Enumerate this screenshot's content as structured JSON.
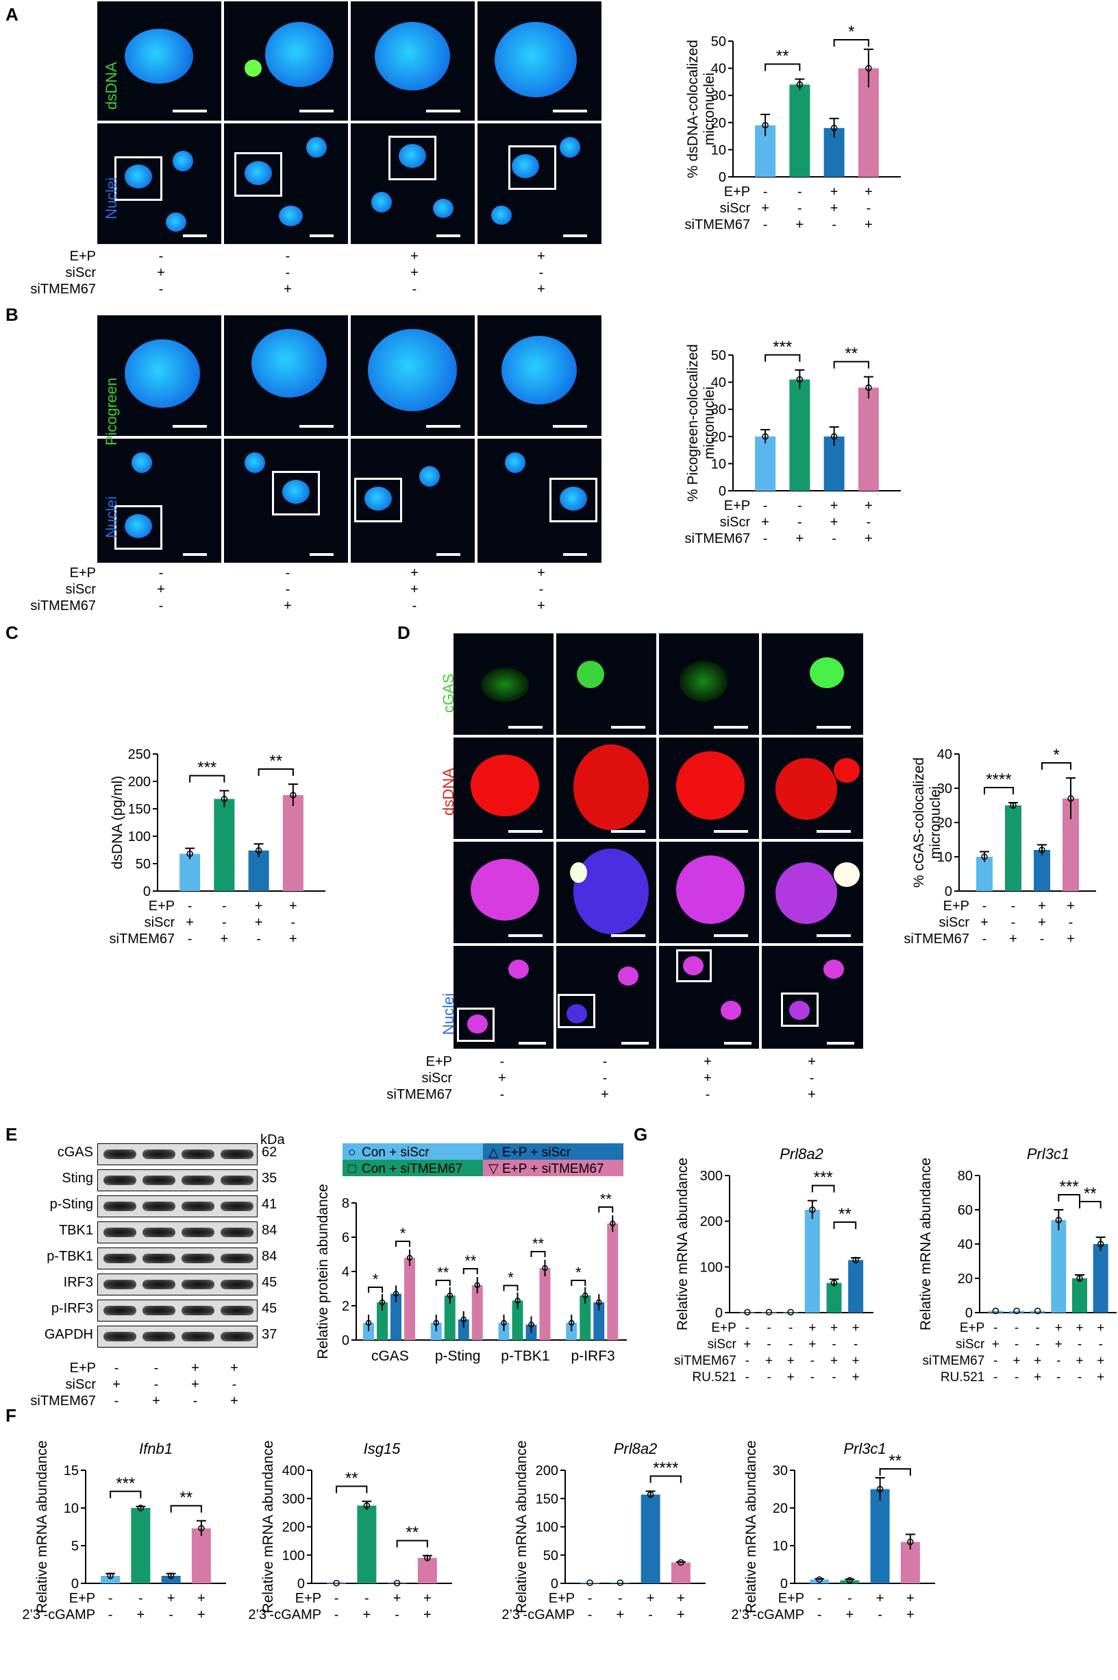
{
  "panels": {
    "A": {
      "letter": "A",
      "stain_top": "dsDNA",
      "stain_bottom": "Nuclei"
    },
    "B": {
      "letter": "B",
      "stain_top": "Picogreen",
      "stain_bottom": "Nuclei"
    },
    "C": {
      "letter": "C"
    },
    "D": {
      "letter": "D",
      "stains": [
        "cGAS",
        "dsDNA",
        "",
        "Nuclei"
      ]
    },
    "E": {
      "letter": "E",
      "kda_label": "kDa",
      "proteins": [
        {
          "name": "cGAS",
          "kda": "62"
        },
        {
          "name": "Sting",
          "kda": "35"
        },
        {
          "name": "p-Sting",
          "kda": "41"
        },
        {
          "name": "TBK1",
          "kda": "84"
        },
        {
          "name": "p-TBK1",
          "kda": "84"
        },
        {
          "name": "IRF3",
          "kda": "45"
        },
        {
          "name": "p-IRF3",
          "kda": "45"
        },
        {
          "name": "GAPDH",
          "kda": "37"
        }
      ]
    },
    "F": {
      "letter": "F"
    },
    "G": {
      "letter": "G"
    }
  },
  "conditions": {
    "rows": [
      "E+P",
      "siScr",
      "siTMEM67"
    ],
    "marks": [
      [
        "-",
        "-",
        "+",
        "+"
      ],
      [
        "+",
        "-",
        "+",
        "-"
      ],
      [
        "-",
        "+",
        "-",
        "+"
      ]
    ]
  },
  "conditions_F": {
    "rows": [
      "E+P",
      "2’3’-cGAMP"
    ],
    "marks": [
      [
        "-",
        "-",
        "+",
        "+"
      ],
      [
        "-",
        "+",
        "-",
        "+"
      ]
    ]
  },
  "conditions_G": {
    "rows": [
      "E+P",
      "siScr",
      "siTMEM67",
      "RU.521"
    ],
    "marks": [
      [
        "-",
        "-",
        "-",
        "+",
        "+",
        "+"
      ],
      [
        "+",
        "-",
        "-",
        "+",
        "-",
        "-"
      ],
      [
        "-",
        "+",
        "+",
        "-",
        "+",
        "+"
      ],
      [
        "-",
        "-",
        "+",
        "-",
        "-",
        "+"
      ]
    ]
  },
  "colors": {
    "c1": "#5bb8ec",
    "c2": "#14996b",
    "c3": "#1b73b4",
    "c4": "#d57aa6"
  },
  "legend_E": [
    "Con + siScr",
    "E+P + siScr",
    "Con + siTMEM67",
    "E+P + siTMEM67"
  ],
  "chart_data": [
    {
      "id": "A",
      "type": "bar",
      "ylabel": "% dsDNA-colocalized micronuclei",
      "ylim": [
        0,
        50
      ],
      "yticks": [
        0,
        10,
        20,
        30,
        40,
        50
      ],
      "values": [
        19,
        34,
        18,
        40
      ],
      "errors": [
        4,
        2,
        3.5,
        7
      ],
      "sig": [
        {
          "a": 0,
          "b": 1,
          "label": "**"
        },
        {
          "a": 2,
          "b": 3,
          "label": "*"
        }
      ]
    },
    {
      "id": "B",
      "type": "bar",
      "ylabel": "% Picogreen-colocalized micronuclei",
      "ylim": [
        0,
        50
      ],
      "yticks": [
        0,
        10,
        20,
        30,
        40,
        50
      ],
      "values": [
        20,
        41,
        20,
        38
      ],
      "errors": [
        2.5,
        3.5,
        3.5,
        4
      ],
      "sig": [
        {
          "a": 0,
          "b": 1,
          "label": "***"
        },
        {
          "a": 2,
          "b": 3,
          "label": "**"
        }
      ]
    },
    {
      "id": "C",
      "type": "bar",
      "ylabel": "dsDNA (pg/ml)",
      "ylim": [
        0,
        250
      ],
      "yticks": [
        0,
        50,
        100,
        150,
        200,
        250
      ],
      "values": [
        68,
        168,
        74,
        175
      ],
      "errors": [
        10,
        15,
        12,
        20
      ],
      "sig": [
        {
          "a": 0,
          "b": 1,
          "label": "***"
        },
        {
          "a": 2,
          "b": 3,
          "label": "**"
        }
      ]
    },
    {
      "id": "D",
      "type": "bar",
      "ylabel": "% cGAS-colocalized micronuclei",
      "ylim": [
        0,
        40
      ],
      "yticks": [
        0,
        10,
        20,
        30,
        40
      ],
      "values": [
        10,
        25,
        12,
        27
      ],
      "errors": [
        1.5,
        0.8,
        1.5,
        6
      ],
      "sig": [
        {
          "a": 0,
          "b": 1,
          "label": "****"
        },
        {
          "a": 2,
          "b": 3,
          "label": "*"
        }
      ]
    },
    {
      "id": "E",
      "type": "bar",
      "ylabel": "Relative protein abundance",
      "ylim": [
        0,
        8
      ],
      "yticks": [
        0,
        2,
        4,
        6,
        8
      ],
      "categories": [
        "cGAS",
        "p-Sting",
        "p-TBK1",
        "p-IRF3"
      ],
      "series": [
        {
          "name": "Con + siScr",
          "values": [
            1.0,
            1.0,
            1.0,
            1.0
          ]
        },
        {
          "name": "Con + siTMEM67",
          "values": [
            2.2,
            2.6,
            2.3,
            2.6
          ]
        },
        {
          "name": "E+P + siScr",
          "values": [
            2.7,
            1.2,
            0.9,
            2.2
          ]
        },
        {
          "name": "E+P + siTMEM67",
          "values": [
            4.8,
            3.2,
            4.2,
            6.8
          ]
        }
      ],
      "sig": [
        [
          "*",
          "*"
        ],
        [
          "**",
          "**"
        ],
        [
          "*",
          "**"
        ],
        [
          "*",
          "**"
        ]
      ]
    },
    {
      "id": "F1",
      "type": "bar",
      "title": "Ifnb1",
      "ylabel": "Relative mRNA abundance",
      "ylim": [
        0,
        15
      ],
      "yticks": [
        0,
        5,
        10,
        15
      ],
      "values": [
        1.0,
        10.0,
        1.0,
        7.3
      ],
      "errors": [
        0.3,
        0.2,
        0.3,
        1.0
      ],
      "sig": [
        {
          "a": 0,
          "b": 1,
          "label": "***"
        },
        {
          "a": 2,
          "b": 3,
          "label": "**"
        }
      ]
    },
    {
      "id": "F2",
      "type": "bar",
      "title": "Isg15",
      "ylabel": "Relative mRNA abundance",
      "ylim": [
        0,
        400
      ],
      "yticks": [
        0,
        100,
        200,
        300,
        400
      ],
      "values": [
        1,
        275,
        1,
        90
      ],
      "errors": [
        0,
        15,
        0,
        8
      ],
      "sig": [
        {
          "a": 0,
          "b": 1,
          "label": "**"
        },
        {
          "a": 2,
          "b": 3,
          "label": "**"
        }
      ]
    },
    {
      "id": "F3",
      "type": "bar",
      "title": "Prl8a2",
      "ylabel": "Relative mRNA abundance",
      "ylim": [
        0,
        200
      ],
      "yticks": [
        0,
        50,
        100,
        150,
        200
      ],
      "values": [
        1,
        1,
        157,
        37
      ],
      "errors": [
        0,
        0,
        6,
        1
      ],
      "sig": [
        {
          "a": 2,
          "b": 3,
          "label": "****"
        }
      ]
    },
    {
      "id": "F4",
      "type": "bar",
      "title": "Prl3c1",
      "ylabel": "Relative mRNA abundance",
      "ylim": [
        0,
        30
      ],
      "yticks": [
        0,
        10,
        20,
        30
      ],
      "values": [
        1,
        0.8,
        25,
        11
      ],
      "errors": [
        0.2,
        0.3,
        3,
        2
      ],
      "sig": [
        {
          "a": 2,
          "b": 3,
          "label": "**"
        }
      ]
    },
    {
      "id": "G1",
      "type": "bar",
      "title": "Prl8a2",
      "ylabel": "Relative mRNA abundance",
      "ylim": [
        0,
        300
      ],
      "yticks": [
        0,
        100,
        200,
        300
      ],
      "values": [
        1,
        1,
        1,
        225,
        65,
        115
      ],
      "errors": [
        0,
        0,
        0,
        20,
        8,
        5
      ],
      "sig": [
        {
          "a": 3,
          "b": 4,
          "label": "***"
        },
        {
          "a": 4,
          "b": 5,
          "label": "**"
        }
      ]
    },
    {
      "id": "G2",
      "type": "bar",
      "title": "Prl3c1",
      "ylabel": "Relative mRNA abundance",
      "ylim": [
        0,
        80
      ],
      "yticks": [
        0,
        20,
        40,
        60,
        80
      ],
      "values": [
        1,
        1,
        1,
        54,
        20,
        40
      ],
      "errors": [
        0,
        0,
        0,
        6,
        2,
        4
      ],
      "sig": [
        {
          "a": 3,
          "b": 4,
          "label": "***"
        },
        {
          "a": 4,
          "b": 5,
          "label": "**"
        }
      ]
    }
  ]
}
